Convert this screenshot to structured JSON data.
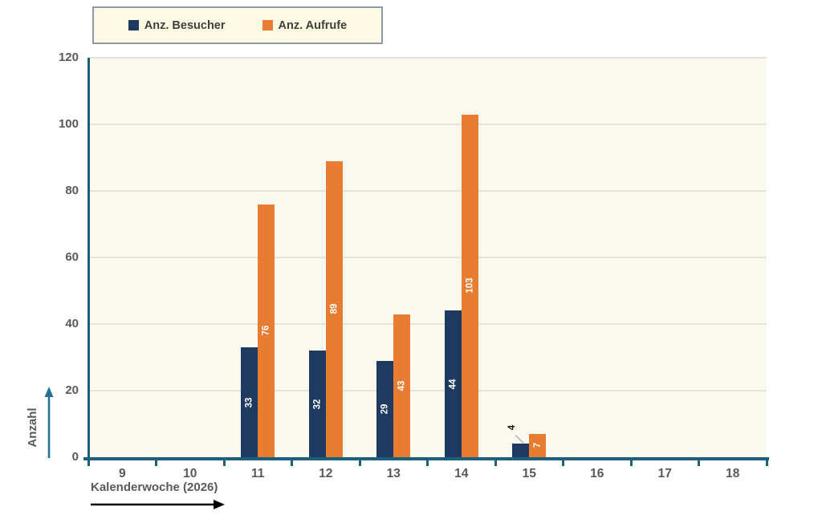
{
  "legend": {
    "items": [
      {
        "label": "Anz. Besucher",
        "color": "#1F3A61"
      },
      {
        "label": "Anz. Aufrufe",
        "color": "#E87C30"
      }
    ]
  },
  "axes": {
    "y_title": "Anzahl",
    "x_title": "Kalenderwoche (2026)"
  },
  "chart_data": {
    "type": "bar",
    "title": "",
    "categories": [
      "9",
      "10",
      "11",
      "12",
      "13",
      "14",
      "15",
      "16",
      "17",
      "18"
    ],
    "series": [
      {
        "name": "Anz. Besucher",
        "color": "#1F3A61",
        "values": [
          null,
          null,
          33,
          32,
          29,
          44,
          4,
          null,
          null,
          null
        ]
      },
      {
        "name": "Anz. Aufrufe",
        "color": "#E87C30",
        "values": [
          null,
          null,
          76,
          89,
          43,
          103,
          7,
          null,
          null,
          null
        ]
      }
    ],
    "xlabel": "Kalenderwoche (2026)",
    "ylabel": "Anzahl",
    "ylim": [
      0,
      120
    ],
    "yticks": [
      0,
      20,
      40,
      60,
      80,
      100,
      120
    ],
    "grid": true,
    "legend_position": "top",
    "data_labels": "inside-center-rotated",
    "colors": {
      "axis": "#1C5F7B",
      "grid": "#E3E3DA",
      "plot_bg": "#FAF9EF",
      "legend_bg": "#FDFAE3",
      "legend_border": "#8C99A9",
      "tick_text": "#595959",
      "bar_label": "#FFFFFF",
      "outside_label": "#1A1A1A",
      "y_arrow": "#276F92",
      "x_arrow": "#000000"
    }
  }
}
